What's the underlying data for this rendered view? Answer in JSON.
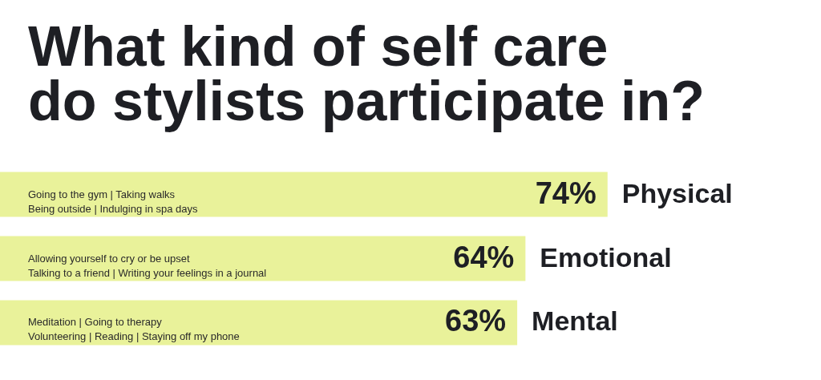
{
  "chart_data": {
    "type": "bar",
    "orientation": "horizontal",
    "title": "What kind of self care do stylists participate in?",
    "categories": [
      "Physical",
      "Emotional",
      "Mental"
    ],
    "values": [
      74,
      64,
      63
    ],
    "value_labels": [
      "74%",
      "64%",
      "63%"
    ],
    "color": "#e9f29a",
    "xlim": [
      0,
      100
    ],
    "tick_labels": false,
    "annotations": [
      "Going to the gym  |  Taking walks\nBeing outside  |  Indulging in spa days",
      "Allowing yourself to cry or be upset\nTalking to a friend  |  Writing your feelings in a journal",
      "Meditation  |  Going to therapy\nVolunteering  |  Reading  |  Staying off my phone"
    ]
  }
}
